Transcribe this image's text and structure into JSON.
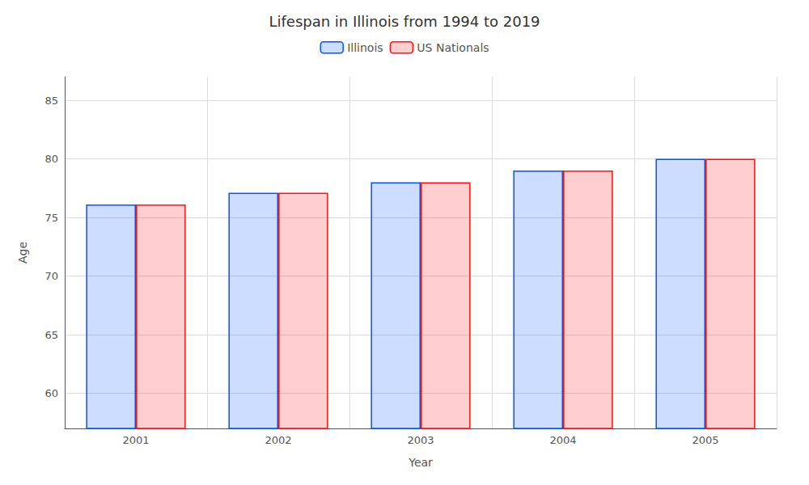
{
  "chart_data": {
    "type": "bar",
    "title": "Lifespan in Illinois from 1994 to 2019",
    "xlabel": "Year",
    "ylabel": "Age",
    "categories": [
      "2001",
      "2002",
      "2003",
      "2004",
      "2005"
    ],
    "series": [
      {
        "name": "Illinois",
        "color": "#0055ff",
        "values": [
          76.1,
          77.1,
          78.0,
          79.0,
          80.0
        ]
      },
      {
        "name": "US Nationals",
        "color": "#ff1111",
        "values": [
          76.1,
          77.1,
          78.0,
          79.0,
          80.0
        ]
      }
    ],
    "ylim": [
      57,
      87
    ],
    "yticks": [
      60,
      65,
      70,
      75,
      80,
      85
    ],
    "grid": true,
    "legend": "top"
  }
}
